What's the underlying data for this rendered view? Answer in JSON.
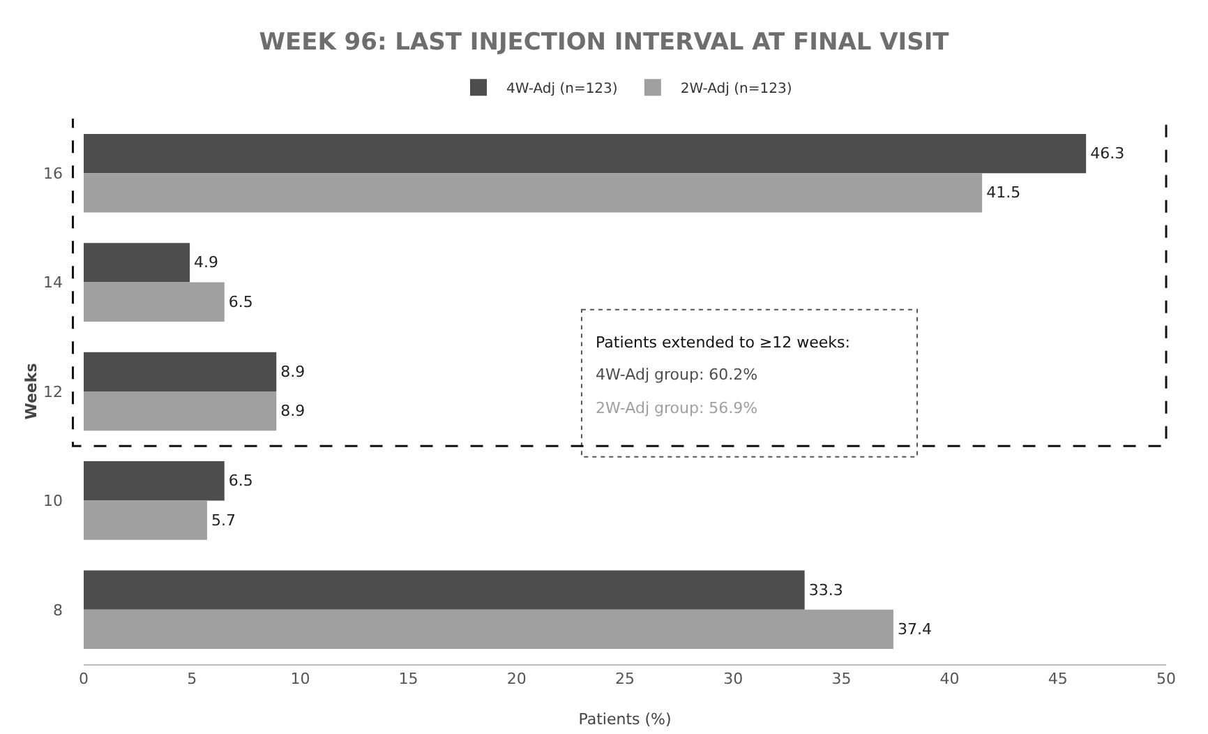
{
  "chart_data": {
    "type": "bar",
    "orientation": "horizontal",
    "title": "WEEK 96: LAST INJECTION INTERVAL AT FINAL VISIT",
    "xlabel": "Patients (%)",
    "ylabel": "Weeks",
    "categories": [
      "16",
      "14",
      "12",
      "10",
      "8"
    ],
    "series": [
      {
        "name": "4W-Adj (n=123)",
        "color": "#4d4d4d",
        "values": [
          46.3,
          4.9,
          8.9,
          6.5,
          33.3
        ]
      },
      {
        "name": "2W-Adj (n=123)",
        "color": "#a0a0a0",
        "values": [
          41.5,
          6.5,
          8.9,
          5.7,
          37.4
        ]
      }
    ],
    "xlim": [
      0,
      50
    ],
    "xticks": [
      0,
      5,
      10,
      15,
      20,
      25,
      30,
      35,
      40,
      45,
      50
    ],
    "grid": false,
    "legend": "top",
    "data_labels": true,
    "annotations": [
      "Patients extended to ≥12 weeks:",
      "4W-Adj group: 60.2%",
      "2W-Adj group: 56.9%"
    ]
  }
}
